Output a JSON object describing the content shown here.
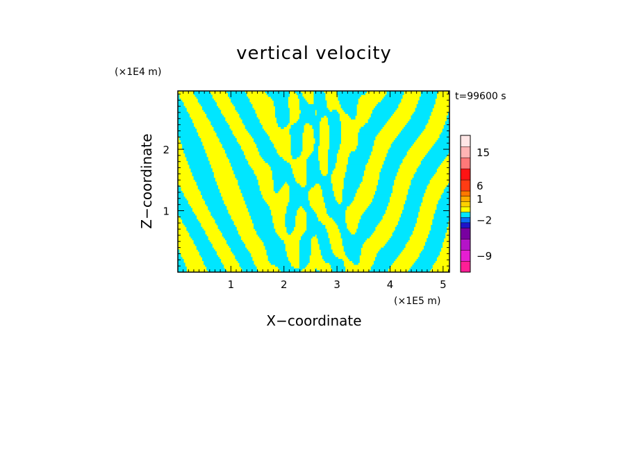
{
  "chart_data": {
    "type": "heatmap",
    "title": "vertical velocity",
    "xlabel": "X−coordinate",
    "ylabel": "Z−coordinate",
    "x_unit": "(×1E5 m)",
    "y_unit": "(×1E4 m)",
    "time_label": "t=99600 s",
    "xlim": [
      0,
      5.12
    ],
    "ylim": [
      0,
      2.95
    ],
    "x_ticks": [
      1,
      2,
      3,
      4,
      5
    ],
    "y_ticks": [
      1,
      2
    ],
    "field_colors": {
      "positive": "#ffff00",
      "negative": "#00e6ff"
    },
    "colorbar": {
      "labels": [
        {
          "text": "15",
          "value": 15
        },
        {
          "text": "6",
          "value": 6
        },
        {
          "text": "1",
          "value": 1
        },
        {
          "text": "−2",
          "value": -2
        },
        {
          "text": "−9",
          "value": -9
        }
      ],
      "levels": [
        {
          "value": -12,
          "color": "#ff1e96"
        },
        {
          "value": -9,
          "color": "#e61ed2"
        },
        {
          "value": -6,
          "color": "#b414c8"
        },
        {
          "value": -4,
          "color": "#7800a0"
        },
        {
          "value": -3,
          "color": "#1e14c8"
        },
        {
          "value": -2,
          "color": "#0a6ef5"
        },
        {
          "value": -1,
          "color": "#00e6ff"
        },
        {
          "value": 0,
          "color": "#ffff00"
        },
        {
          "value": 0.5,
          "color": "#ffd200"
        },
        {
          "value": 1,
          "color": "#ffaa00"
        },
        {
          "value": 3,
          "color": "#ff7800"
        },
        {
          "value": 6,
          "color": "#ff3c14"
        },
        {
          "value": 9,
          "color": "#ff1414"
        },
        {
          "value": 12,
          "color": "#ff7878"
        },
        {
          "value": 15,
          "color": "#ffb4b4"
        },
        {
          "value": 18,
          "color": "#ffe6e6"
        }
      ]
    }
  }
}
